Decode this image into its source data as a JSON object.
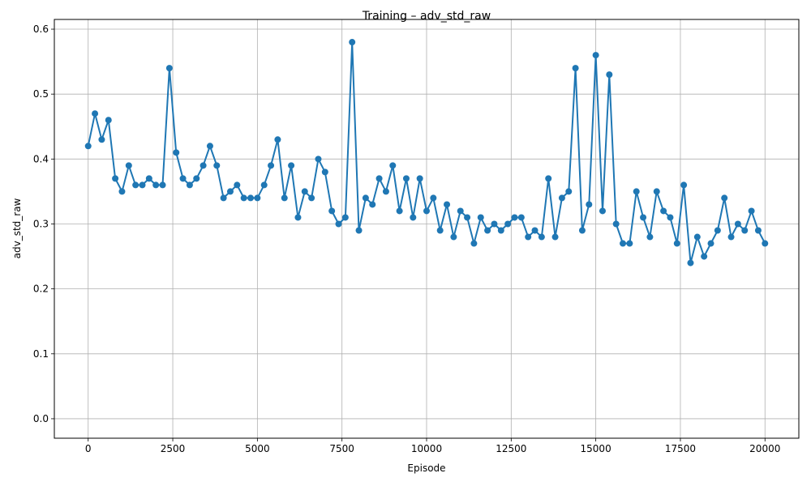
{
  "chart_data": {
    "type": "line",
    "title": "Training – adv_std_raw",
    "xlabel": "Episode",
    "ylabel": "adv_std_raw",
    "xlim": [
      -1000,
      21000
    ],
    "ylim": [
      -0.03,
      0.615
    ],
    "xticks": [
      0,
      2500,
      5000,
      7500,
      10000,
      12500,
      15000,
      17500,
      20000
    ],
    "xtick_labels": [
      "0",
      "2500",
      "5000",
      "7500",
      "10000",
      "12500",
      "15000",
      "17500",
      "20000"
    ],
    "yticks": [
      0.0,
      0.1,
      0.2,
      0.3,
      0.4,
      0.5,
      0.6
    ],
    "ytick_labels": [
      "0.0",
      "0.1",
      "0.2",
      "0.3",
      "0.4",
      "0.5",
      "0.6"
    ],
    "grid": true,
    "marker": "circle",
    "color": "#1f77b4",
    "series": [
      {
        "name": "",
        "x": [
          0,
          200,
          400,
          600,
          800,
          1000,
          1200,
          1400,
          1600,
          1800,
          2000,
          2200,
          2400,
          2600,
          2800,
          3000,
          3200,
          3400,
          3600,
          3800,
          4000,
          4200,
          4400,
          4600,
          4800,
          5000,
          5200,
          5400,
          5600,
          5800,
          6000,
          6200,
          6400,
          6600,
          6800,
          7000,
          7200,
          7400,
          7600,
          7800,
          8000,
          8200,
          8400,
          8600,
          8800,
          9000,
          9200,
          9400,
          9600,
          9800,
          10000,
          10200,
          10400,
          10600,
          10800,
          11000,
          11200,
          11400,
          11600,
          11800,
          12000,
          12200,
          12400,
          12600,
          12800,
          13000,
          13200,
          13400,
          13600,
          13800,
          14000,
          14200,
          14400,
          14600,
          14800,
          15000,
          15200,
          15400,
          15600,
          15800,
          16000,
          16200,
          16400,
          16600,
          16800,
          17000,
          17200,
          17400,
          17600,
          17800,
          18000,
          18200,
          18400,
          18600,
          18800,
          19000,
          19200,
          19400,
          19600,
          19800,
          20000
        ],
        "y": [
          0.42,
          0.47,
          0.43,
          0.46,
          0.37,
          0.35,
          0.39,
          0.36,
          0.36,
          0.37,
          0.36,
          0.36,
          0.54,
          0.41,
          0.37,
          0.36,
          0.37,
          0.39,
          0.42,
          0.39,
          0.34,
          0.35,
          0.36,
          0.34,
          0.34,
          0.34,
          0.36,
          0.39,
          0.43,
          0.34,
          0.39,
          0.31,
          0.35,
          0.34,
          0.4,
          0.38,
          0.32,
          0.3,
          0.31,
          0.58,
          0.29,
          0.34,
          0.33,
          0.37,
          0.35,
          0.39,
          0.32,
          0.37,
          0.31,
          0.37,
          0.32,
          0.34,
          0.29,
          0.33,
          0.28,
          0.32,
          0.31,
          0.27,
          0.31,
          0.29,
          0.3,
          0.29,
          0.3,
          0.31,
          0.31,
          0.28,
          0.29,
          0.28,
          0.37,
          0.28,
          0.34,
          0.35,
          0.54,
          0.29,
          0.33,
          0.56,
          0.32,
          0.53,
          0.3,
          0.27,
          0.27,
          0.35,
          0.31,
          0.28,
          0.35,
          0.32,
          0.31,
          0.27,
          0.36,
          0.24,
          0.28,
          0.25,
          0.27,
          0.29,
          0.34,
          0.28,
          0.3,
          0.29,
          0.32,
          0.29,
          0.27
        ]
      }
    ]
  }
}
